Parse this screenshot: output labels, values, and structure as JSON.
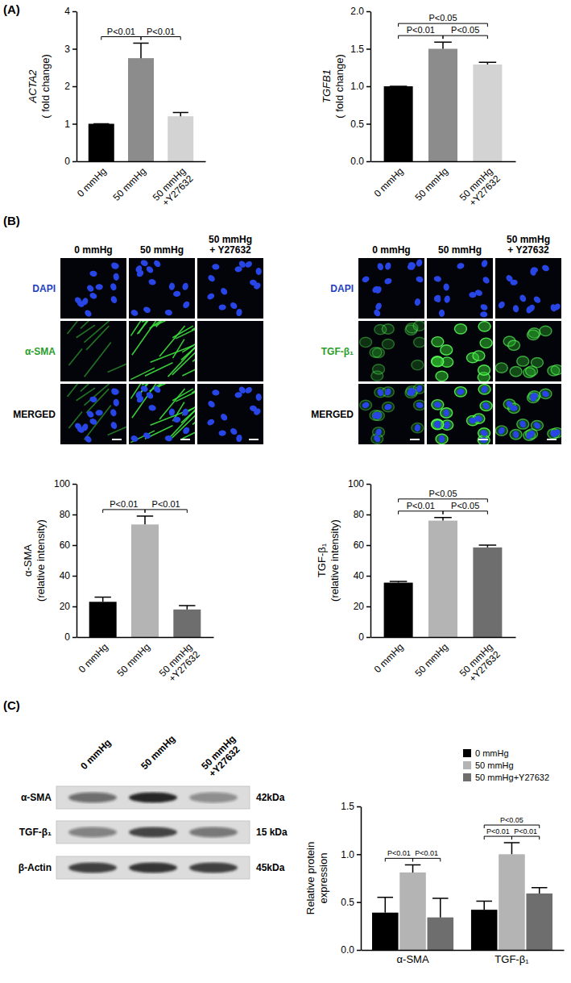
{
  "figure": {
    "panel_labels": [
      "(A)",
      "(B)",
      "(C)"
    ]
  },
  "chart_data": [
    {
      "type": "bar",
      "y_label": "ACTA2\n( fold change)",
      "categories": [
        "0 mmHg",
        "50 mmHg",
        "50 mmHg\n+Y27632"
      ],
      "values": [
        1,
        2.75,
        1.2
      ],
      "errors": [
        0,
        0.4,
        0.1
      ],
      "colors": [
        "#000000",
        "#8c8c8c",
        "#d3d3d3"
      ],
      "ylim": [
        0,
        4
      ],
      "yticks": [
        0,
        1,
        2,
        3,
        4
      ],
      "annotations": [
        {
          "text": "P<0.01",
          "pair": [
            "0 mmHg",
            "50 mmHg"
          ]
        },
        {
          "text": "P<0.01",
          "pair": [
            "50 mmHg",
            "50 mmHg\n+Y27632"
          ]
        }
      ]
    },
    {
      "type": "bar",
      "y_label": "TGFB1\n( fold change)",
      "categories": [
        "0 mmHg",
        "50 mmHg",
        "50 mmHg\n+Y27632"
      ],
      "values": [
        1,
        1.5,
        1.29
      ],
      "errors": [
        0,
        0.09,
        0.03
      ],
      "colors": [
        "#000000",
        "#8c8c8c",
        "#d3d3d3"
      ],
      "ylim": [
        0,
        2
      ],
      "yticks": [
        {
          "value": 0,
          "label": "0.0"
        },
        {
          "value": 0.5,
          "label": "0.5"
        },
        {
          "value": 1,
          "label": "1.0"
        },
        {
          "value": 1.5,
          "label": "1.5"
        },
        {
          "value": 2,
          "label": "2.0"
        }
      ],
      "annotations": [
        {
          "text": "P<0.01",
          "pair": [
            "0 mmHg",
            "50 mmHg"
          ]
        },
        {
          "text": "P<0.05",
          "pair": [
            "50 mmHg",
            "50 mmHg\n+Y27632"
          ]
        },
        {
          "text": "P<0.05",
          "pair": [
            "0 mmHg",
            "50 mmHg\n+Y27632"
          ]
        }
      ]
    },
    {
      "type": "bar",
      "y_label": "α-SMA\n(relative intensity)",
      "categories": [
        "0 mmHg",
        "50 mmHg",
        "50 mmHg\n+Y27632"
      ],
      "values": [
        23,
        73.5,
        18
      ],
      "errors": [
        3,
        5.5,
        2.5
      ],
      "colors": [
        "#000000",
        "#b4b4b4",
        "#6e6e6e"
      ],
      "ylim": [
        0,
        100
      ],
      "yticks": [
        0,
        20,
        40,
        60,
        80,
        100
      ],
      "annotations": [
        {
          "text": "P<0.01",
          "pair": [
            "0 mmHg",
            "50 mmHg"
          ]
        },
        {
          "text": "P<0.01",
          "pair": [
            "50 mmHg",
            "50 mmHg\n+Y27632"
          ]
        }
      ]
    },
    {
      "type": "bar",
      "y_label": "TGF-β₁\n(relative intensity)",
      "categories": [
        "0 mmHg",
        "50 mmHg",
        "50 mmHg\n+Y27632"
      ],
      "values": [
        35.5,
        76,
        58.5
      ],
      "errors": [
        0.8,
        2,
        1.5
      ],
      "colors": [
        "#000000",
        "#b4b4b4",
        "#6e6e6e"
      ],
      "ylim": [
        0,
        100
      ],
      "yticks": [
        0,
        20,
        40,
        60,
        80,
        100
      ],
      "annotations": [
        {
          "text": "P<0.01",
          "pair": [
            "0 mmHg",
            "50 mmHg"
          ]
        },
        {
          "text": "P<0.05",
          "pair": [
            "50 mmHg",
            "50 mmHg\n+Y27632"
          ]
        },
        {
          "text": "P<0.05",
          "pair": [
            "0 mmHg",
            "50 mmHg\n+Y27632"
          ]
        }
      ]
    },
    {
      "type": "bar",
      "y_label": "Relative protein\nexpression",
      "categories": [
        "α-SMA",
        "TGF-β₁"
      ],
      "series": [
        {
          "name": "0 mmHg",
          "color": "#000000",
          "values": [
            0.39,
            0.42
          ],
          "errors": [
            0.16,
            0.09
          ]
        },
        {
          "name": "50 mmHg",
          "color": "#b4b4b4",
          "values": [
            0.81,
            1.0
          ],
          "errors": [
            0.08,
            0.12
          ]
        },
        {
          "name": "50 mmHg+Y27632",
          "color": "#6e6e6e",
          "values": [
            0.34,
            0.59
          ],
          "errors": [
            0.2,
            0.06
          ]
        }
      ],
      "ylim": [
        0,
        1.5
      ],
      "yticks": [
        {
          "value": 0,
          "label": "0.0"
        },
        {
          "value": 0.5,
          "label": "0.5"
        },
        {
          "value": 1,
          "label": "1.0"
        },
        {
          "value": 1.5,
          "label": "1.5"
        }
      ],
      "legend": "upper right",
      "annotations": [
        {
          "text": "P<0.01",
          "category": "α-SMA",
          "pair": [
            "0 mmHg",
            "50 mmHg"
          ]
        },
        {
          "text": "P<0.01",
          "category": "α-SMA",
          "pair": [
            "50 mmHg",
            "50 mmHg+Y27632"
          ]
        },
        {
          "text": "P<0.01",
          "category": "TGF-β₁",
          "pair": [
            "0 mmHg",
            "50 mmHg"
          ]
        },
        {
          "text": "P<0.01",
          "category": "TGF-β₁",
          "pair": [
            "50 mmHg",
            "50 mmHg+Y27632"
          ]
        },
        {
          "text": "P<0.05",
          "category": "TGF-β₁",
          "pair": [
            "0 mmHg",
            "50 mmHg+Y27632"
          ]
        }
      ]
    }
  ],
  "micrographs": [
    {
      "columns": [
        "0 mmHg",
        "50 mmHg",
        "50 mmHg\n+ Y27632"
      ],
      "rows": [
        "DAPI",
        "α-SMA",
        "MERGED"
      ]
    },
    {
      "columns": [
        "0 mmHg",
        "50 mmHg",
        "50 mmHg\n+ Y27632"
      ],
      "rows": [
        "DAPI",
        "TGF-β₁",
        "MERGED"
      ]
    }
  ],
  "blot": {
    "lanes": [
      "0 mmHg",
      "50 mmHg",
      "50 mmHg\n+Y27632"
    ],
    "rows": [
      {
        "protein": "α-SMA",
        "size": "42kDa"
      },
      {
        "protein": "TGF-β₁",
        "size": "15 kDa"
      },
      {
        "protein": "β-Actin",
        "size": "45kDa"
      }
    ]
  }
}
